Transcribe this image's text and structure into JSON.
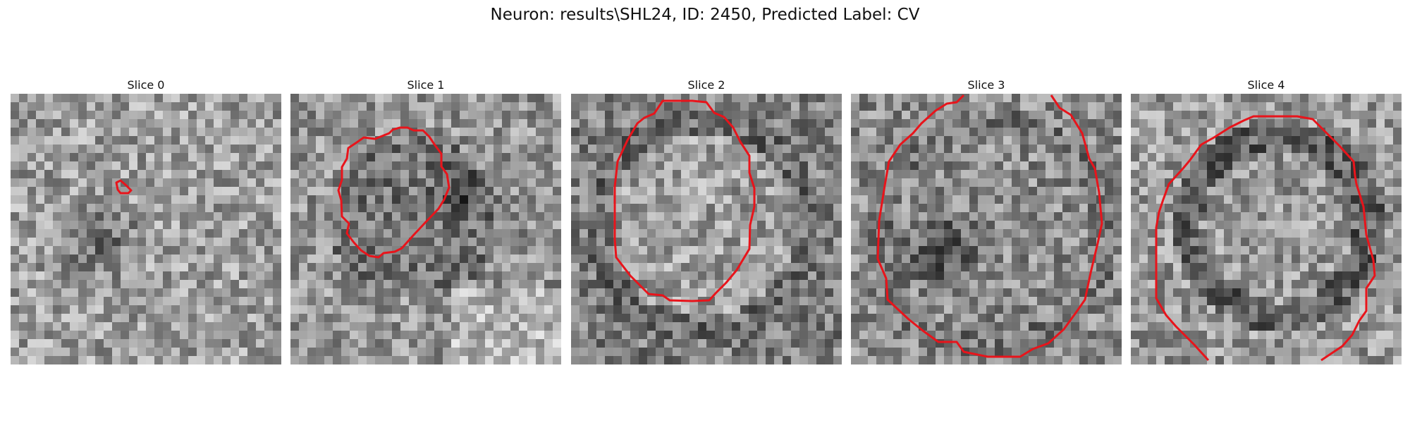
{
  "figure": {
    "title": "Neuron: results\\SHL24, ID: 2450, Predicted Label: CV"
  },
  "overlay": {
    "contour_color": "#e8141b"
  },
  "slices": [
    {
      "title": "Slice 0",
      "tone": "light-speckle"
    },
    {
      "title": "Slice 1",
      "tone": "dark-core"
    },
    {
      "title": "Slice 2",
      "tone": "bright-core"
    },
    {
      "title": "Slice 3",
      "tone": "dark-left"
    },
    {
      "title": "Slice 4",
      "tone": "ring"
    }
  ]
}
